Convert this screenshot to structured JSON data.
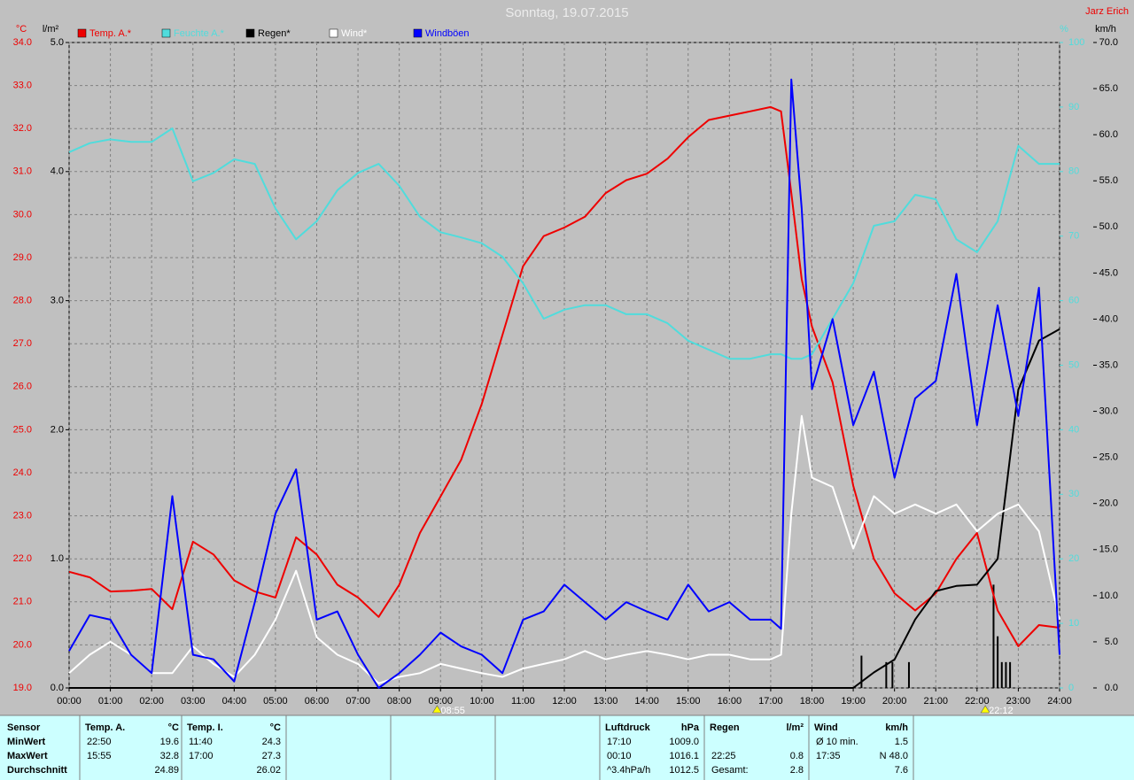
{
  "chart_data": {
    "type": "line",
    "title": "Sonntag, 19.07.2015",
    "author": "Jarz Erich",
    "axis_units": {
      "y": "°C",
      "y2": "l/m²",
      "y3": "%",
      "y4": "km/h"
    },
    "grid": true,
    "x": [
      0,
      0.5,
      1,
      1.5,
      2,
      2.5,
      3,
      3.5,
      4,
      4.5,
      5,
      5.5,
      6,
      6.5,
      7,
      7.5,
      8,
      8.5,
      9,
      9.5,
      10,
      10.5,
      11,
      11.5,
      12,
      12.5,
      13,
      13.5,
      14,
      14.5,
      15,
      15.5,
      16,
      16.5,
      17,
      17.25,
      17.5,
      17.75,
      18,
      18.5,
      19,
      19.5,
      20,
      20.5,
      21,
      21.5,
      22,
      22.5,
      23,
      23.5,
      24
    ],
    "xlim": [
      0,
      24
    ],
    "xticks": [
      {
        "value": 0,
        "label": "00:00"
      },
      {
        "value": 1,
        "label": "01:00"
      },
      {
        "value": 2,
        "label": "02:00"
      },
      {
        "value": 3,
        "label": "03:00"
      },
      {
        "value": 4,
        "label": "04:00"
      },
      {
        "value": 5,
        "label": "05:00"
      },
      {
        "value": 6,
        "label": "06:00"
      },
      {
        "value": 7,
        "label": "07:00"
      },
      {
        "value": 8,
        "label": "08:00"
      },
      {
        "value": 9,
        "label": "09:00"
      },
      {
        "value": 10,
        "label": "10:00"
      },
      {
        "value": 11,
        "label": "11:00"
      },
      {
        "value": 12,
        "label": "12:00"
      },
      {
        "value": 13,
        "label": "13:00"
      },
      {
        "value": 14,
        "label": "14:00"
      },
      {
        "value": 15,
        "label": "15:00"
      },
      {
        "value": 16,
        "label": "16:00"
      },
      {
        "value": 17,
        "label": "17:00"
      },
      {
        "value": 18,
        "label": "18:00"
      },
      {
        "value": 19,
        "label": "19:00"
      },
      {
        "value": 20,
        "label": "20:00"
      },
      {
        "value": 21,
        "label": "21:00"
      },
      {
        "value": 22,
        "label": "22:00"
      },
      {
        "value": 23,
        "label": "23:00"
      },
      {
        "value": 24,
        "label": "24:00"
      }
    ],
    "ylim": [
      19,
      34
    ],
    "yticks": [
      {
        "value": 19,
        "label": "19.0"
      },
      {
        "value": 20,
        "label": "20.0"
      },
      {
        "value": 21,
        "label": "21.0"
      },
      {
        "value": 22,
        "label": "22.0"
      },
      {
        "value": 23,
        "label": "23.0"
      },
      {
        "value": 24,
        "label": "24.0"
      },
      {
        "value": 25,
        "label": "25.0"
      },
      {
        "value": 26,
        "label": "26.0"
      },
      {
        "value": 27,
        "label": "27.0"
      },
      {
        "value": 28,
        "label": "28.0"
      },
      {
        "value": 29,
        "label": "29.0"
      },
      {
        "value": 30,
        "label": "30.0"
      },
      {
        "value": 31,
        "label": "31.0"
      },
      {
        "value": 32,
        "label": "32.0"
      },
      {
        "value": 33,
        "label": "33.0"
      },
      {
        "value": 34,
        "label": "34.0"
      }
    ],
    "y2lim": [
      0,
      5
    ],
    "y2ticks": [
      {
        "value": 0,
        "label": "0.0"
      },
      {
        "value": 1,
        "label": "1.0"
      },
      {
        "value": 2,
        "label": "2.0"
      },
      {
        "value": 3,
        "label": "3.0"
      },
      {
        "value": 4,
        "label": "4.0"
      },
      {
        "value": 5,
        "label": "5.0"
      }
    ],
    "y3lim": [
      0,
      100
    ],
    "y3ticks": [
      0,
      10,
      20,
      30,
      40,
      50,
      60,
      70,
      80,
      90,
      100
    ],
    "y4lim": [
      0,
      70
    ],
    "y4ticks": [
      {
        "value": 0,
        "label": "0.0"
      },
      {
        "value": 5,
        "label": "5.0"
      },
      {
        "value": 10,
        "label": "10.0"
      },
      {
        "value": 15,
        "label": "15.0"
      },
      {
        "value": 20,
        "label": "20.0"
      },
      {
        "value": 25,
        "label": "25.0"
      },
      {
        "value": 30,
        "label": "30.0"
      },
      {
        "value": 35,
        "label": "35.0"
      },
      {
        "value": 40,
        "label": "40.0"
      },
      {
        "value": 45,
        "label": "45.0"
      },
      {
        "value": 50,
        "label": "50.0"
      },
      {
        "value": 55,
        "label": "55.0"
      },
      {
        "value": 60,
        "label": "60.0"
      },
      {
        "value": 65,
        "label": "65.0"
      },
      {
        "value": 70,
        "label": "70.0"
      }
    ],
    "series": [
      {
        "name": "Temp. A.*",
        "color": "#ee0000",
        "axis": "y",
        "values": [
          21.7,
          21.57,
          21.24,
          21.26,
          21.3,
          20.83,
          22.4,
          22.1,
          21.5,
          21.24,
          21.1,
          22.5,
          22.1,
          21.4,
          21.1,
          20.65,
          21.4,
          22.6,
          23.45,
          24.3,
          25.6,
          27.2,
          28.8,
          29.5,
          29.7,
          29.95,
          30.5,
          30.8,
          30.95,
          31.3,
          31.8,
          32.2,
          32.3,
          32.4,
          32.5,
          32.4,
          30.5,
          28.5,
          27.4,
          26.1,
          23.7,
          22.0,
          21.2,
          20.8,
          21.2,
          22.0,
          22.6,
          20.8,
          19.97,
          20.46,
          20.4
        ]
      },
      {
        "name": "Feuchte A.*",
        "color": "#50dcdc",
        "axis": "y3",
        "values": [
          83,
          84.4,
          85,
          84.6,
          84.6,
          86.7,
          78.5,
          79.8,
          81.9,
          81.2,
          74.3,
          69.5,
          72.3,
          77.1,
          79.8,
          81.2,
          77.8,
          73,
          70.6,
          69.8,
          68.9,
          66.8,
          62.7,
          57.2,
          58.6,
          59.3,
          59.3,
          57.9,
          57.9,
          56.5,
          53.8,
          52.4,
          51,
          51,
          51.7,
          51.7,
          51,
          51,
          51.7,
          57.2,
          62.7,
          71.6,
          72.3,
          76.4,
          75.7,
          69.5,
          67.5,
          72.3,
          84,
          81.2,
          81.2
        ]
      },
      {
        "name": "Regen*",
        "color": "#000000",
        "axis": "y2",
        "values": [
          0,
          0,
          0,
          0,
          0,
          0,
          0,
          0,
          0,
          0,
          0,
          0,
          0,
          0,
          0,
          0,
          0,
          0,
          0,
          0,
          0,
          0,
          0,
          0,
          0,
          0,
          0,
          0,
          0,
          0,
          0,
          0,
          0,
          0,
          0,
          0,
          0,
          0,
          0,
          0,
          0,
          0.12,
          0.22,
          0.53,
          0.75,
          0.79,
          0.8,
          1.0,
          2.31,
          2.69,
          2.78
        ]
      },
      {
        "name": "Wind*",
        "color": "#ffffff",
        "axis": "y4",
        "values": [
          1.6,
          3.6,
          5,
          3.6,
          1.6,
          1.6,
          4.5,
          2.6,
          1.2,
          3.6,
          7.4,
          12.7,
          5.5,
          3.6,
          2.6,
          0.5,
          1.2,
          1.6,
          2.6,
          2.1,
          1.6,
          1.2,
          2.1,
          2.6,
          3.1,
          4,
          3.1,
          3.6,
          4,
          3.6,
          3.1,
          3.6,
          3.6,
          3.1,
          3.1,
          3.6,
          18.9,
          29.5,
          22.8,
          21.8,
          15.1,
          20.8,
          18.9,
          19.9,
          18.9,
          19.9,
          17,
          18.9,
          19.9,
          17,
          7.4
        ]
      },
      {
        "name": "Windböen",
        "color": "#0000ff",
        "axis": "y4",
        "values": [
          4,
          7.9,
          7.4,
          3.6,
          1.6,
          20.8,
          3.6,
          3.1,
          0.7,
          9.3,
          18.9,
          23.7,
          7.4,
          8.3,
          3.6,
          0,
          1.6,
          3.6,
          6,
          4.5,
          3.6,
          1.6,
          7.4,
          8.3,
          11.2,
          9.3,
          7.4,
          9.3,
          8.3,
          7.4,
          11.2,
          8.3,
          9.3,
          7.4,
          7.4,
          6.4,
          66,
          52,
          32.4,
          40,
          28.5,
          34.3,
          22.8,
          31.4,
          33.3,
          44.9,
          28.5,
          41.5,
          29.5,
          43.4,
          3.6
        ]
      }
    ],
    "rain_bars": {
      "color": "#000000",
      "axis": "y2",
      "x": [
        19.2,
        19.8,
        19.95,
        20.35,
        22.4,
        22.5,
        22.6,
        22.7,
        22.8
      ],
      "values": [
        0.25,
        0.2,
        0.2,
        0.2,
        0.8,
        0.4,
        0.2,
        0.2,
        0.2
      ]
    },
    "annotations": [
      {
        "x": 8.9167,
        "label": "08:55"
      },
      {
        "x": 22.2,
        "label": "22:12"
      }
    ]
  },
  "stats": {
    "row_labels": {
      "title": "Sensor",
      "rows": [
        "MinWert",
        "MaxWert",
        "Durchschnitt"
      ]
    },
    "blocks": [
      {
        "title": "Temp. A.",
        "unit": "°C",
        "rows": [
          {
            "time": "22:50",
            "value": "19.6"
          },
          {
            "time": "15:55",
            "value": "32.8"
          },
          {
            "value": "24.89"
          }
        ]
      },
      {
        "title": "Temp. I.",
        "unit": "°C",
        "rows": [
          {
            "time": "11:40",
            "value": "24.3"
          },
          {
            "time": "17:00",
            "value": "27.3"
          },
          {
            "value": "26.02"
          }
        ]
      },
      {
        "title": "Luftdruck",
        "unit": "hPa",
        "rows": [
          {
            "time": "17:10",
            "value": "1009.0"
          },
          {
            "time": "00:10",
            "value": "1016.1"
          },
          {
            "time": "^3.4hPa/h",
            "value": "1012.5"
          }
        ]
      },
      {
        "title": "Regen",
        "unit": "l/m²",
        "rows": [
          null,
          {
            "time": "22:25",
            "value": "0.8"
          },
          {
            "time": "Gesamt:",
            "value": "2.8"
          }
        ]
      },
      {
        "title": "Wind",
        "unit": "km/h",
        "rows": [
          {
            "time": "Ø 10 min.",
            "value": "1.5"
          },
          {
            "time": "17:35",
            "value": "N 48.0"
          },
          {
            "value": "7.6"
          }
        ]
      }
    ]
  }
}
